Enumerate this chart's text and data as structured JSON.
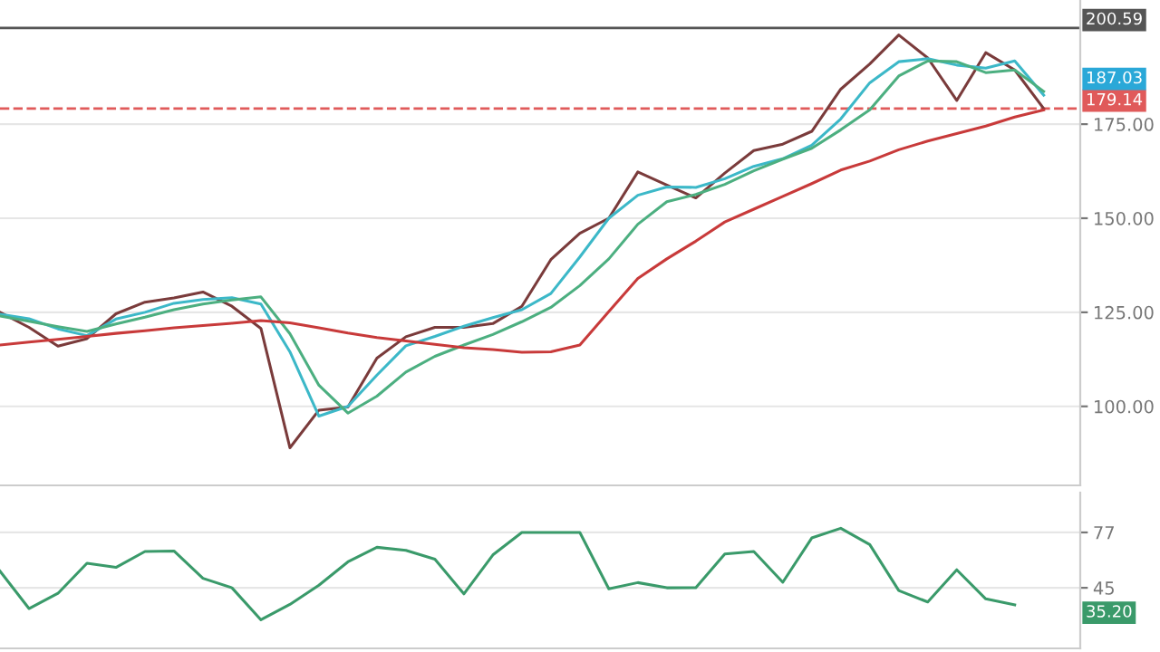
{
  "chart_data": [
    {
      "type": "line",
      "categories": [
        null,
        null,
        null,
        null,
        null,
        null,
        null,
        null,
        null,
        null,
        null,
        null,
        null,
        null,
        null,
        null,
        null,
        null,
        null,
        null,
        null,
        null,
        null,
        null,
        null,
        null,
        null,
        null,
        null,
        null,
        null,
        null,
        null,
        null,
        null,
        null,
        null
      ],
      "ylim": [
        79,
        208
      ],
      "yticks": [
        {
          "value": 100,
          "label": "100.00"
        },
        {
          "value": 125,
          "label": "125.00"
        },
        {
          "value": 150,
          "label": "150.00"
        },
        {
          "value": 175,
          "label": "175.00"
        }
      ],
      "grid": "y",
      "tick_labels": "y",
      "series": [
        {
          "color": "#7a3b3b",
          "values": [
            125,
            121,
            116,
            118,
            124.6,
            127.7,
            128.8,
            130.4,
            126.6,
            120.7,
            89,
            99,
            99.8,
            112.8,
            118.5,
            121,
            121,
            122,
            126.6,
            139,
            146,
            150,
            162.3,
            158.8,
            155.4,
            162,
            168,
            169.7,
            173.1,
            184.3,
            191,
            198.7,
            192.6,
            181.3,
            194,
            189.4,
            179.14
          ]
        },
        {
          "color": "#3cb8c8",
          "values": [
            124.5,
            123.3,
            120.6,
            118.8,
            123.2,
            125,
            127.4,
            128.4,
            128.9,
            127.2,
            114.5,
            97.4,
            100,
            108.3,
            116.1,
            118.6,
            121.3,
            123.6,
            125.7,
            130,
            139.7,
            150,
            156.1,
            158.3,
            158.2,
            160.5,
            163.8,
            165.8,
            169.4,
            176.4,
            186,
            191.6,
            192.4,
            190.7,
            189.9,
            191.8,
            182.7
          ]
        },
        {
          "color": "#4caf80",
          "values": [
            124,
            122.6,
            121.2,
            119.9,
            121.9,
            123.7,
            125.7,
            127.2,
            128.3,
            129.1,
            119.3,
            105.6,
            98.2,
            102.7,
            109.1,
            113.3,
            116.3,
            119.1,
            122.5,
            126.3,
            132.1,
            139.2,
            148.4,
            154.4,
            156.3,
            159,
            162.6,
            165.7,
            168.6,
            173.5,
            178.8,
            187.8,
            191.8,
            191.6,
            188.7,
            189.4,
            183.7
          ]
        },
        {
          "color": "#c83a3a",
          "values": [
            116.3,
            117.1,
            117.8,
            118.6,
            119.4,
            120.1,
            120.9,
            121.5,
            122.1,
            122.8,
            122.2,
            120.9,
            119.5,
            118.3,
            117.4,
            116.5,
            115.6,
            115.1,
            114.4,
            114.5,
            116.3,
            125.2,
            134,
            139.2,
            143.9,
            149,
            152.4,
            155.8,
            159.2,
            162.8,
            165.2,
            168.2,
            170.5,
            172.5,
            174.5,
            176.9,
            178.8
          ]
        }
      ],
      "ref_lines": [
        {
          "axis": "y",
          "value": 200.59,
          "label": "200.59",
          "color": "#555555",
          "line_style": "solid"
        },
        {
          "axis": "y",
          "value": 179.14,
          "label": "179.14",
          "color": "#e05a5a",
          "line_style": "dashed"
        }
      ],
      "annotations": [
        {
          "text": "187.03",
          "y": 187.03
        }
      ]
    },
    {
      "type": "line",
      "categories": [
        null,
        null,
        null,
        null,
        null,
        null,
        null,
        null,
        null,
        null,
        null,
        null,
        null,
        null,
        null,
        null,
        null,
        null,
        null,
        null,
        null,
        null,
        null,
        null,
        null,
        null,
        null,
        null,
        null,
        null,
        null,
        null,
        null,
        null,
        null,
        null,
        null
      ],
      "ylim": [
        10,
        100
      ],
      "yticks": [
        77,
        45
      ],
      "grid": "y",
      "tick_labels": "y",
      "series": [
        {
          "color": "#3a9a6a",
          "values": [
            54.6,
            33,
            41.8,
            59.2,
            56.8,
            66,
            66.3,
            50.5,
            45,
            26.5,
            35.4,
            46.5,
            60,
            68.4,
            66.6,
            61.5,
            41.5,
            64,
            77,
            77,
            77,
            44.4,
            48,
            45,
            45.1,
            64.6,
            66,
            48.2,
            73.8,
            79.4,
            70,
            43.4,
            36.8,
            55.4,
            38.6,
            35.2,
            null
          ]
        }
      ],
      "annotations": [
        "35.20"
      ]
    }
  ]
}
